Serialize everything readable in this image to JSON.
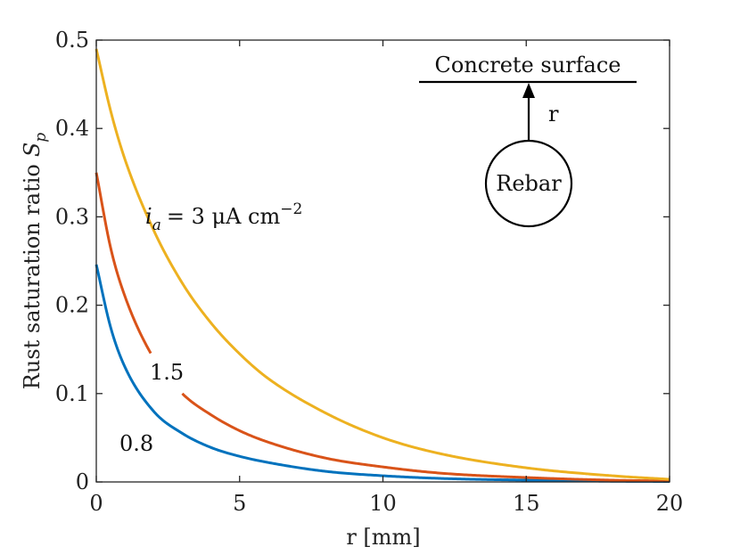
{
  "chart_data": {
    "type": "line",
    "title": "",
    "xlabel": "r [mm]",
    "ylabel": "Rust saturation ratio",
    "ylabel_symbol": "S",
    "ylabel_subscript": "p",
    "xlim": [
      0,
      20
    ],
    "ylim": [
      0,
      0.5
    ],
    "xticks": [
      "0",
      "5",
      "10",
      "15",
      "20"
    ],
    "yticks": [
      "0",
      "0.1",
      "0.2",
      "0.3",
      "0.4",
      "0.5"
    ],
    "grid": false,
    "x": [
      0,
      0.5,
      1,
      2,
      3,
      4,
      5,
      6,
      8,
      10,
      12,
      15,
      18,
      20
    ],
    "series": [
      {
        "name": "0.8",
        "color": "#0072BD",
        "values": [
          0.246,
          0.175,
          0.13,
          0.08,
          0.055,
          0.039,
          0.029,
          0.022,
          0.012,
          0.007,
          0.004,
          0.002,
          0.0008,
          0.0005
        ],
        "label_text": "0.8",
        "gap": null
      },
      {
        "name": "1.5",
        "color": "#D95319",
        "values": [
          0.35,
          0.265,
          0.21,
          0.14,
          0.1,
          0.076,
          0.058,
          0.045,
          0.027,
          0.017,
          0.01,
          0.005,
          0.002,
          0.001
        ],
        "label_text": "1.5",
        "gap": [
          1.9,
          3.0
        ]
      },
      {
        "name": "3",
        "color": "#EDB120",
        "values": [
          0.49,
          0.42,
          0.365,
          0.285,
          0.225,
          0.18,
          0.145,
          0.117,
          0.078,
          0.05,
          0.032,
          0.016,
          0.007,
          0.003
        ],
        "label_text": "= 3 μA cm",
        "label_prefix": "i",
        "label_subscript": "a",
        "label_superscript": "−2",
        "gap": null
      }
    ]
  },
  "inset": {
    "surface_label": "Concrete surface",
    "rebar_label": "Rebar",
    "arrow_label": "r"
  }
}
